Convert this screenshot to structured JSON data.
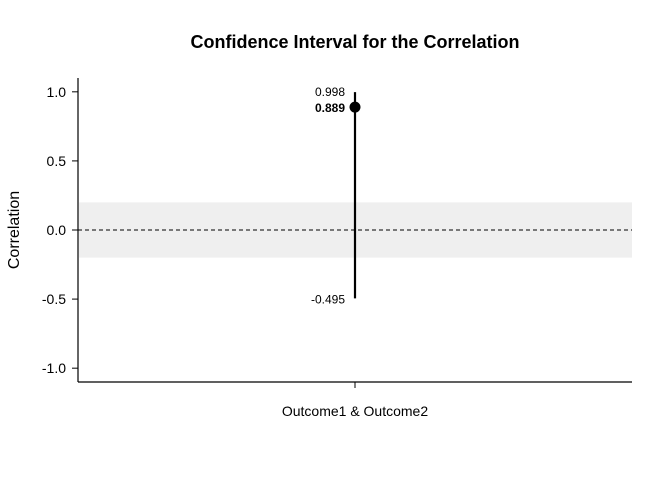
{
  "chart_data": {
    "type": "scatter",
    "title": "Confidence Interval for the Correlation",
    "xlabel": "",
    "ylabel": "Correlation",
    "ylim": [
      -1.1,
      1.1
    ],
    "yticks": [
      1.0,
      0.5,
      0.0,
      -0.5,
      -1.0
    ],
    "ytick_labels": [
      "1.0",
      "0.5",
      "0.0",
      "-0.5",
      "-1.0"
    ],
    "categories": [
      "Outcome1 & Outcome2"
    ],
    "points": [
      {
        "category": "Outcome1 & Outcome2",
        "estimate": 0.889,
        "lower": -0.495,
        "upper": 0.998,
        "estimate_label": "0.889",
        "lower_label": "-0.495",
        "upper_label": "0.998"
      }
    ],
    "reference_line": 0.0,
    "reference_band": [
      -0.2,
      0.2
    ],
    "colors": {
      "band": "#efefef",
      "line": "#000000",
      "point": "#000000"
    },
    "grid": false,
    "legend": "none"
  }
}
